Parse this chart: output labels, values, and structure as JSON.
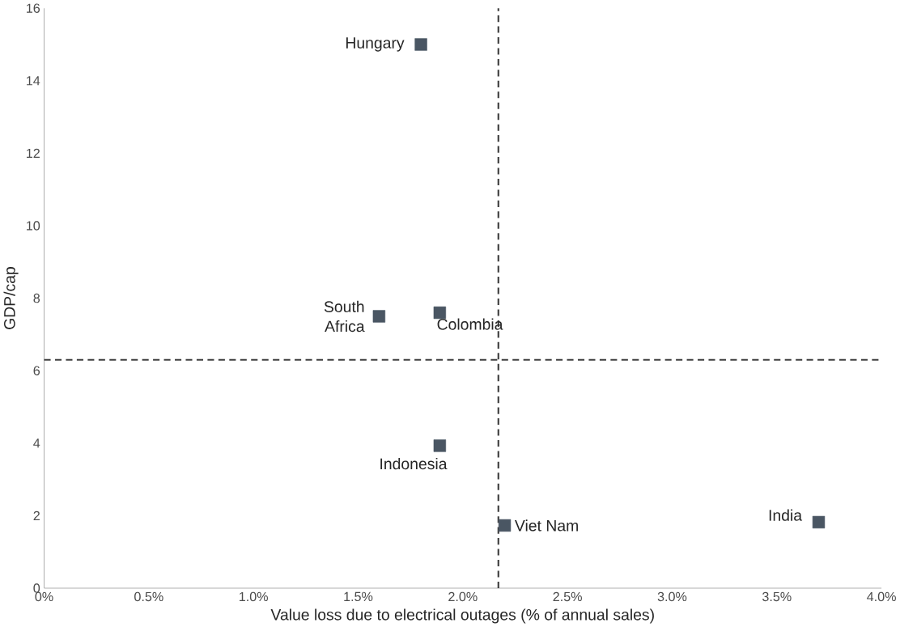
{
  "chart_data": {
    "type": "scatter",
    "xlabel": "Value loss due to electrical outages (% of annual sales)",
    "ylabel": "GDP/cap",
    "x": [
      1.8,
      1.6,
      1.89,
      1.89,
      2.2,
      3.7
    ],
    "series": [
      {
        "color": "#4a5663",
        "values": [
          15.0,
          7.5,
          7.6,
          3.93,
          1.73,
          1.82
        ]
      }
    ],
    "marker": "square",
    "grid": false,
    "xlim": [
      0,
      4
    ],
    "ylim": [
      0,
      16
    ],
    "xticks": [
      {
        "value": 0,
        "label": "0%"
      },
      {
        "value": 0.5,
        "label": "0.5%"
      },
      {
        "value": 1,
        "label": "1.0%"
      },
      {
        "value": 1.5,
        "label": "1.5%"
      },
      {
        "value": 2,
        "label": "2.0%"
      },
      {
        "value": 2.5,
        "label": "2.5%"
      },
      {
        "value": 3,
        "label": "3.0%"
      },
      {
        "value": 3.5,
        "label": "3.5%"
      },
      {
        "value": 4,
        "label": "4.0%"
      }
    ],
    "yticks": [
      0,
      2,
      4,
      6,
      8,
      10,
      12,
      14,
      16
    ],
    "ref_lines": [
      {
        "axis": "x",
        "value": 2.17,
        "line_style": "dashed",
        "color": "#404040"
      },
      {
        "axis": "y",
        "value": 6.3,
        "line_style": "dashed",
        "color": "#404040"
      }
    ],
    "annotations": [
      {
        "text": "Hungary",
        "x": 1.8,
        "y": 15.0
      },
      {
        "text": "South Africa",
        "x": 1.6,
        "y": 7.5
      },
      {
        "text": "Colombia",
        "x": 1.89,
        "y": 7.6
      },
      {
        "text": "Indonesia",
        "x": 1.89,
        "y": 3.93
      },
      {
        "text": "Viet Nam",
        "x": 2.2,
        "y": 1.73
      },
      {
        "text": "India",
        "x": 3.7,
        "y": 1.82
      }
    ]
  }
}
